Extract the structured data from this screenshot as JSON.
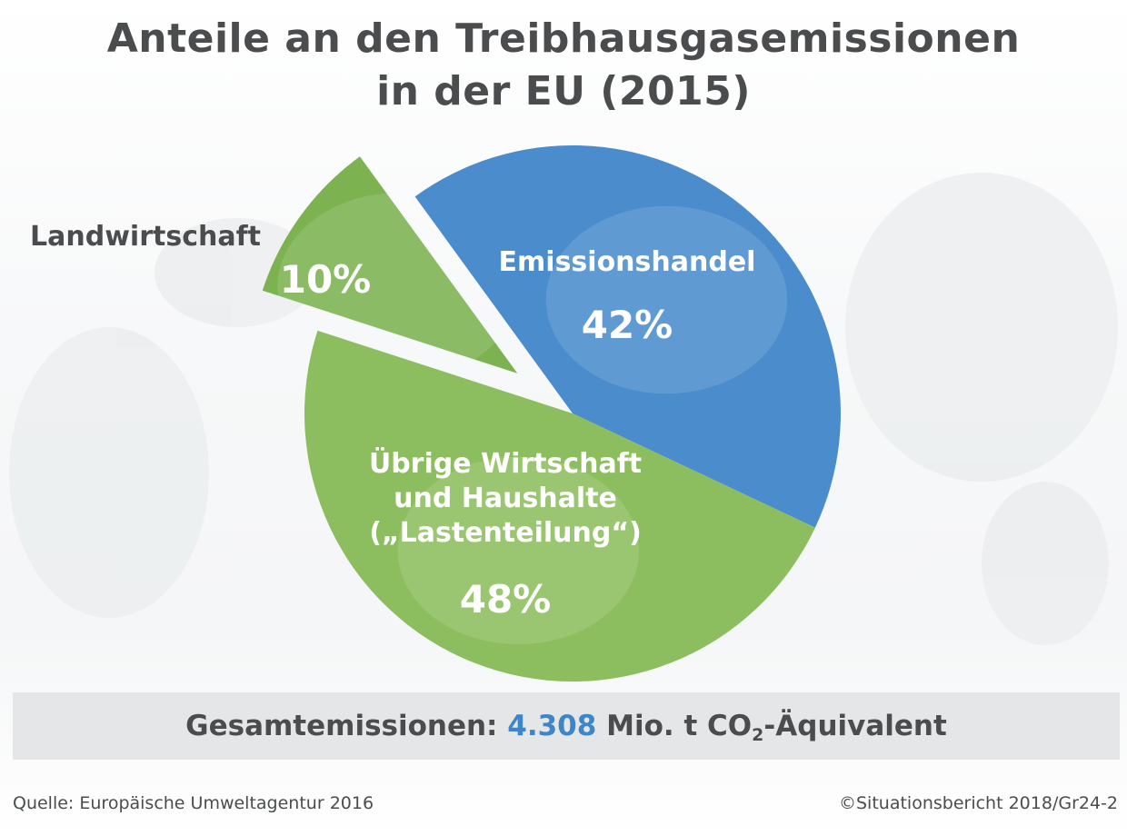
{
  "title_line1": "Anteile an den Treibhausgasemissionen",
  "title_line2": "in der EU (2015)",
  "chart_data": {
    "type": "pie",
    "slices": [
      {
        "label": "Emissionshandel",
        "label_lines": [
          "Emissionshandel"
        ],
        "value": 42,
        "value_label": "42%",
        "color": "#4a8ccc",
        "exploded": false
      },
      {
        "label": "Übrige Wirtschaft und Haushalte („Lastenteilung“)",
        "label_lines": [
          "Übrige Wirtschaft",
          "und Haushalte",
          "(„Lastenteilung“)"
        ],
        "value": 48,
        "value_label": "48%",
        "color": "#8cbd5e",
        "exploded": false
      },
      {
        "label": "Landwirtschaft",
        "label_lines": [
          "Landwirtschaft"
        ],
        "value": 10,
        "value_label": "10%",
        "color": "#7cb24f",
        "exploded": true
      }
    ]
  },
  "total": {
    "prefix": "Gesamtemissionen: ",
    "value": "4.308",
    "unit_before_sub": " Mio. t CO",
    "sub": "2",
    "unit_after_sub": "-Äquivalent"
  },
  "footer": {
    "source": "Quelle: Europäische Umweltagentur 2016",
    "copyright": "©Situationsbericht 2018/Gr24-2"
  }
}
